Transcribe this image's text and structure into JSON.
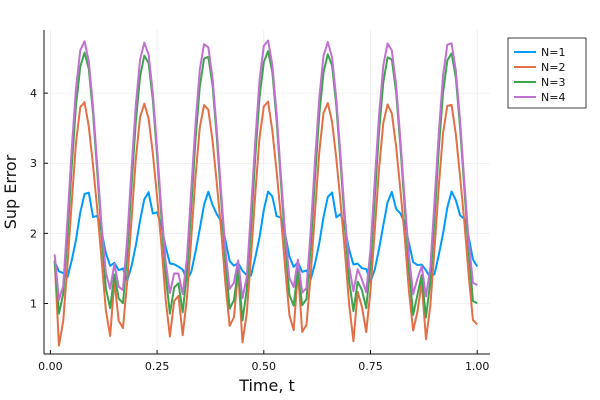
{
  "chart_data": {
    "type": "line",
    "title": "",
    "xlabel": "Time, t",
    "ylabel": "Sup Error",
    "xlim": [
      -0.015,
      1.03
    ],
    "ylim": [
      0.28,
      4.9
    ],
    "xticks": [
      0.0,
      0.25,
      0.5,
      0.75,
      1.0
    ],
    "xtick_labels": [
      "0.00",
      "0.25",
      "0.50",
      "0.75",
      "1.00"
    ],
    "yticks": [
      1,
      2,
      3,
      4
    ],
    "ytick_labels": [
      "1",
      "2",
      "3",
      "4"
    ],
    "grid": true,
    "legend_position": "outside-top-right",
    "period": 0.1429,
    "x_start": 0.01,
    "x_end": 1.0,
    "num_points": 100,
    "series": [
      {
        "name": "N=1",
        "color": "#009AFA",
        "cycle_profile": [
          [
            0.0,
            1.6
          ],
          [
            0.06,
            1.45
          ],
          [
            0.12,
            1.5
          ],
          [
            0.18,
            1.3
          ],
          [
            0.24,
            1.45
          ],
          [
            0.3,
            1.7
          ],
          [
            0.36,
            1.95
          ],
          [
            0.42,
            2.3
          ],
          [
            0.5,
            2.6
          ],
          [
            0.56,
            2.58
          ],
          [
            0.62,
            2.22
          ],
          [
            0.68,
            2.3
          ],
          [
            0.74,
            2.15
          ],
          [
            0.8,
            1.9
          ],
          [
            0.86,
            1.62
          ],
          [
            0.92,
            1.52
          ],
          [
            1.0,
            1.6
          ]
        ]
      },
      {
        "name": "N=2",
        "color": "#E26F46",
        "cycle_profile": [
          [
            0.0,
            1.62
          ],
          [
            0.07,
            0.4
          ],
          [
            0.14,
            0.75
          ],
          [
            0.21,
            1.55
          ],
          [
            0.28,
            2.45
          ],
          [
            0.35,
            3.3
          ],
          [
            0.42,
            3.8
          ],
          [
            0.5,
            3.88
          ],
          [
            0.58,
            3.4
          ],
          [
            0.66,
            2.7
          ],
          [
            0.74,
            1.95
          ],
          [
            0.82,
            1.05
          ],
          [
            0.9,
            0.45
          ],
          [
            0.95,
            0.9
          ],
          [
            1.0,
            1.62
          ]
        ]
      },
      {
        "name": "N=3",
        "color": "#3DA44D",
        "cycle_profile": [
          [
            0.0,
            1.6
          ],
          [
            0.08,
            0.75
          ],
          [
            0.15,
            1.2
          ],
          [
            0.22,
            2.1
          ],
          [
            0.29,
            3.1
          ],
          [
            0.36,
            3.95
          ],
          [
            0.43,
            4.45
          ],
          [
            0.5,
            4.6
          ],
          [
            0.57,
            4.3
          ],
          [
            0.64,
            3.6
          ],
          [
            0.72,
            2.6
          ],
          [
            0.8,
            1.6
          ],
          [
            0.88,
            0.82
          ],
          [
            0.94,
            1.05
          ],
          [
            1.0,
            1.6
          ]
        ]
      },
      {
        "name": "N=4",
        "color": "#C271D2",
        "cycle_profile": [
          [
            0.0,
            1.7
          ],
          [
            0.07,
            1.05
          ],
          [
            0.14,
            1.25
          ],
          [
            0.21,
            2.2
          ],
          [
            0.28,
            3.2
          ],
          [
            0.36,
            4.2
          ],
          [
            0.43,
            4.68
          ],
          [
            0.5,
            4.75
          ],
          [
            0.57,
            4.4
          ],
          [
            0.64,
            3.7
          ],
          [
            0.72,
            2.7
          ],
          [
            0.8,
            1.75
          ],
          [
            0.88,
            1.12
          ],
          [
            0.94,
            1.3
          ],
          [
            1.0,
            1.7
          ]
        ]
      }
    ]
  }
}
